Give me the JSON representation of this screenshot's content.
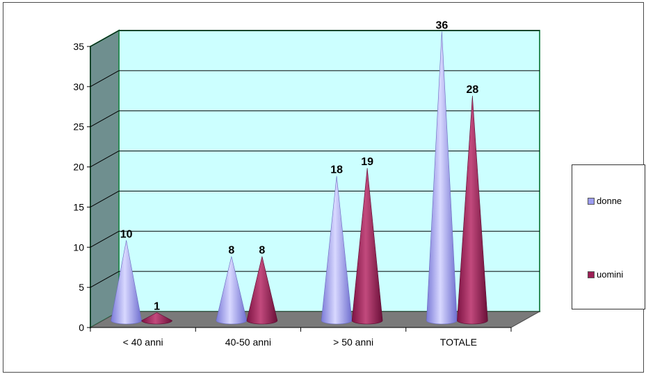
{
  "chart_data": {
    "type": "bar",
    "categories": [
      "< 40 anni",
      "40-50 anni",
      "> 50 anni",
      "TOTALE"
    ],
    "series": [
      {
        "name": "donne",
        "values": [
          10,
          8,
          18,
          36
        ]
      },
      {
        "name": "uomini",
        "values": [
          1,
          8,
          19,
          28
        ]
      }
    ],
    "ylim": [
      0,
      35
    ],
    "yticks": [
      0,
      5,
      10,
      15,
      20,
      25,
      30,
      35
    ],
    "grid": true,
    "legend_position": "right",
    "colors": {
      "donne": "#9c9cf0",
      "uomini": "#9c1f55",
      "back_wall": "#ccffff",
      "side_wall": "#6f8f8f",
      "floor": "#7a7a7a",
      "wall_border": "#2e8b57"
    }
  },
  "legend": {
    "items": [
      {
        "label": "donne",
        "color": "#9c9cf0"
      },
      {
        "label": "uomini",
        "color": "#9c1f55"
      }
    ]
  }
}
